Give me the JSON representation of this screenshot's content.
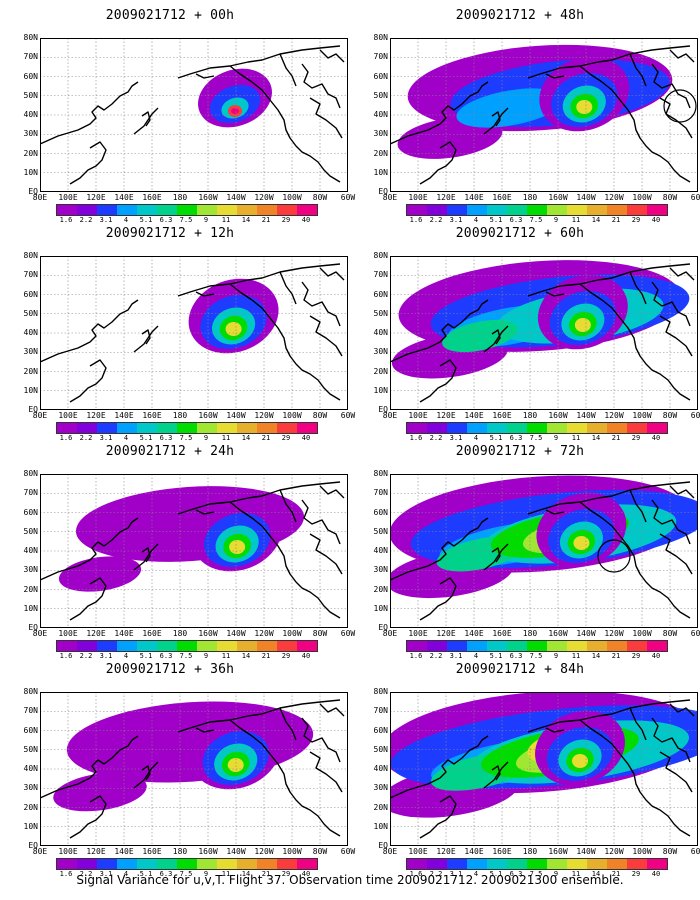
{
  "lat_labels": [
    "80N",
    "70N",
    "60N",
    "50N",
    "40N",
    "30N",
    "20N",
    "10N",
    "EQ"
  ],
  "lon_labels": [
    "80E",
    "100E",
    "120E",
    "140E",
    "160E",
    "180",
    "160W",
    "140W",
    "120W",
    "100W",
    "80W",
    "60W"
  ],
  "colorbar": {
    "labels": [
      "1.6",
      "2.2",
      "3.1",
      "4",
      "5.1",
      "6.3",
      "7.5",
      "9",
      "11",
      "14",
      "21",
      "29",
      "40"
    ],
    "colors": [
      "#a000c8",
      "#8200dc",
      "#1e3cff",
      "#00a0ff",
      "#00c8c8",
      "#00d28c",
      "#00dc00",
      "#a0e632",
      "#e6dc32",
      "#e6af2d",
      "#f08228",
      "#fa3c3c",
      "#f00082"
    ]
  },
  "panels": [
    {
      "title": "2009021712 + 00h",
      "lead": 0,
      "circle": false
    },
    {
      "title": "2009021712 + 12h",
      "lead": 12,
      "circle": false
    },
    {
      "title": "2009021712 + 24h",
      "lead": 24,
      "circle": false
    },
    {
      "title": "2009021712 + 36h",
      "lead": 36,
      "circle": false
    },
    {
      "title": "2009021712 + 48h",
      "lead": 48,
      "circle": true
    },
    {
      "title": "2009021712 + 60h",
      "lead": 60,
      "circle": false
    },
    {
      "title": "2009021712 + 72h",
      "lead": 72,
      "circle": true
    },
    {
      "title": "2009021712 + 84h",
      "lead": 84,
      "circle": false
    }
  ],
  "footer": "Signal Variance for u,v,T. Flight 37. Observation time 2009021712. 2009021300 ensemble."
}
